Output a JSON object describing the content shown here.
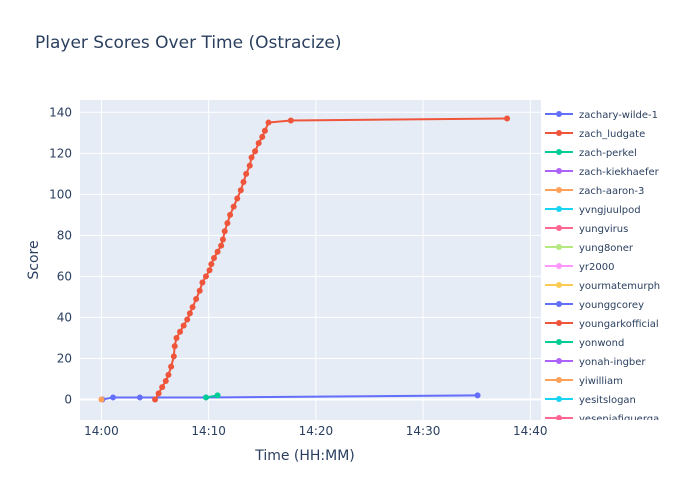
{
  "chart_data": {
    "type": "line",
    "title": "Player Scores Over Time (Ostracize)",
    "xlabel": "Time (HH:MM)",
    "ylabel": "Score",
    "x_range": [
      "13:58:00",
      "14:41:00"
    ],
    "ylim": [
      -10,
      146
    ],
    "x_ticks": [
      "14:00",
      "14:10",
      "14:20",
      "14:30",
      "14:40"
    ],
    "y_ticks": [
      0,
      20,
      40,
      60,
      80,
      100,
      120,
      140
    ],
    "grid": true,
    "legend_position": "right",
    "series": [
      {
        "name": "zachary-wilde-1",
        "color": "#636efa",
        "points": [
          [
            "14:00:05",
            0
          ],
          [
            "14:01:05",
            1
          ],
          [
            "14:03:35",
            1
          ],
          [
            "14:09:45",
            1
          ],
          [
            "14:35:05",
            2
          ]
        ]
      },
      {
        "name": "zach_ludgate",
        "color": "#ef553b",
        "points": [
          [
            "14:05:00",
            0
          ],
          [
            "14:05:20",
            3
          ],
          [
            "14:05:40",
            6
          ],
          [
            "14:06:00",
            9
          ],
          [
            "14:06:15",
            12
          ],
          [
            "14:06:30",
            16
          ],
          [
            "14:06:45",
            21
          ],
          [
            "14:06:50",
            26
          ],
          [
            "14:07:00",
            30
          ],
          [
            "14:07:20",
            33
          ],
          [
            "14:07:40",
            36
          ],
          [
            "14:08:00",
            39
          ],
          [
            "14:08:15",
            42
          ],
          [
            "14:08:30",
            45
          ],
          [
            "14:08:50",
            49
          ],
          [
            "14:09:10",
            53
          ],
          [
            "14:09:25",
            57
          ],
          [
            "14:09:45",
            60
          ],
          [
            "14:10:05",
            63
          ],
          [
            "14:10:15",
            66
          ],
          [
            "14:10:30",
            69
          ],
          [
            "14:10:50",
            72
          ],
          [
            "14:11:10",
            75
          ],
          [
            "14:11:20",
            78
          ],
          [
            "14:11:30",
            82
          ],
          [
            "14:11:45",
            86
          ],
          [
            "14:12:00",
            90
          ],
          [
            "14:12:20",
            94
          ],
          [
            "14:12:40",
            98
          ],
          [
            "14:13:00",
            102
          ],
          [
            "14:13:15",
            106
          ],
          [
            "14:13:30",
            110
          ],
          [
            "14:13:50",
            114
          ],
          [
            "14:14:00",
            118
          ],
          [
            "14:14:20",
            121
          ],
          [
            "14:14:40",
            125
          ],
          [
            "14:15:00",
            128
          ],
          [
            "14:15:15",
            131
          ],
          [
            "14:15:35",
            135
          ],
          [
            "14:17:40",
            136
          ],
          [
            "14:37:50",
            137
          ]
        ]
      },
      {
        "name": "zach-perkel",
        "color": "#00cc96",
        "points": [
          [
            "14:09:45",
            1
          ],
          [
            "14:10:50",
            2
          ]
        ]
      },
      {
        "name": "zach-kiekhaefer",
        "color": "#ab63fa",
        "points": []
      },
      {
        "name": "zach-aaron-3",
        "color": "#ffa15a",
        "points": [
          [
            "14:00:00",
            0
          ]
        ]
      },
      {
        "name": "yvngjuulpod",
        "color": "#19d3f3",
        "points": []
      },
      {
        "name": "yungvirus",
        "color": "#ff6692",
        "points": []
      },
      {
        "name": "yung8oner",
        "color": "#b6e880",
        "points": []
      },
      {
        "name": "yr2000",
        "color": "#ff97ff",
        "points": []
      },
      {
        "name": "yourmatemurph",
        "color": "#fecb52",
        "points": []
      },
      {
        "name": "younggcorey",
        "color": "#636efa",
        "points": []
      },
      {
        "name": "youngarkofficial",
        "color": "#ef553b",
        "points": []
      },
      {
        "name": "yonwond",
        "color": "#00cc96",
        "points": []
      },
      {
        "name": "yonah-ingber",
        "color": "#ab63fa",
        "points": []
      },
      {
        "name": "yiwilliam",
        "color": "#ffa15a",
        "points": []
      },
      {
        "name": "yesitslogan",
        "color": "#19d3f3",
        "points": []
      },
      {
        "name": "yesenjafiguerga",
        "color": "#ff6692",
        "points": []
      }
    ]
  }
}
